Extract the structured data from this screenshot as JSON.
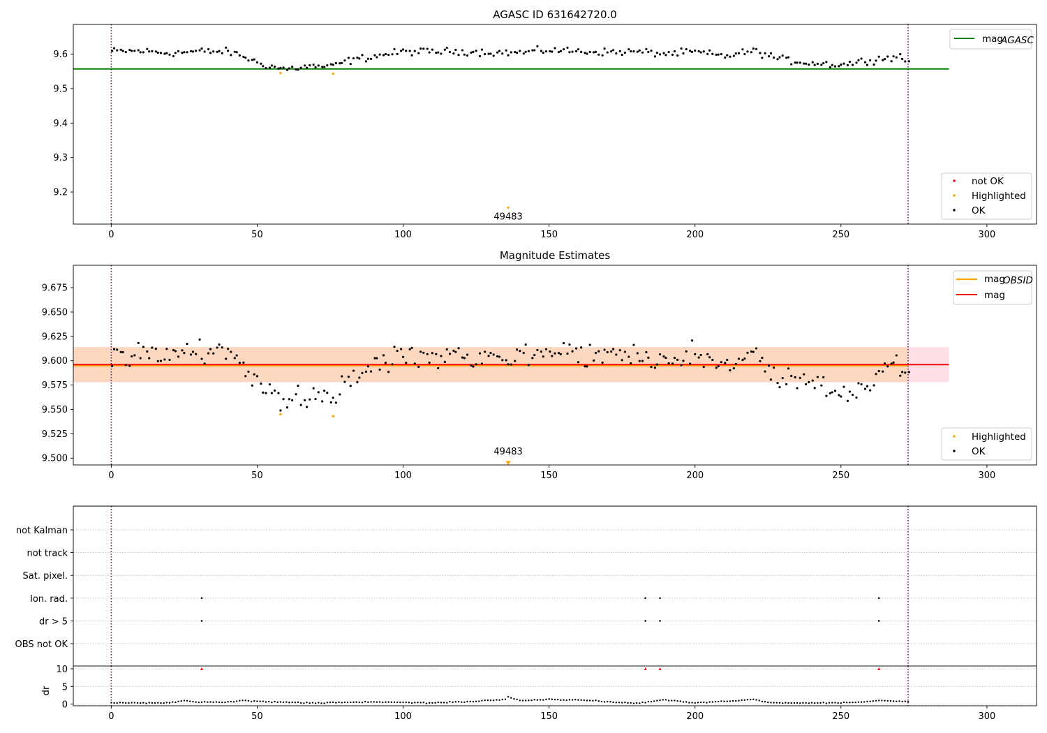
{
  "chart_data": [
    {
      "type": "scatter",
      "title": "AGASC ID 631642720.0",
      "xlim": [
        -13,
        317
      ],
      "ylim": [
        9.107,
        9.686
      ],
      "xticks": [
        "0",
        "50",
        "100",
        "150",
        "200",
        "250",
        "300"
      ],
      "xtick_values": [
        0,
        50,
        100,
        150,
        200,
        250,
        300
      ],
      "yticks": [
        "9.2",
        "9.3",
        "9.4",
        "9.5",
        "9.6"
      ],
      "ytick_values": [
        9.2,
        9.3,
        9.4,
        9.5,
        9.6
      ],
      "grid": false,
      "vlines": [
        0,
        273
      ],
      "reference_line": {
        "label": "mag_AGASC",
        "value": 9.557,
        "x_range": [
          -13,
          287
        ],
        "color": "#008000"
      },
      "legend_top": {
        "placement": "upper right",
        "entries": [
          {
            "label": "mag",
            "subscript": "AGASC",
            "color": "#008000"
          }
        ]
      },
      "legend_bottom": {
        "placement": "lower right",
        "entries": [
          {
            "label": "not OK",
            "color": "#ff0000"
          },
          {
            "label": "Highlighted",
            "color": "#ffa500"
          },
          {
            "label": "OK",
            "color": "#000000"
          }
        ]
      },
      "annotation": {
        "text": "49483",
        "x": 136,
        "y": 9.13
      },
      "highlighted_points": [
        {
          "x": 58,
          "y": 9.545
        },
        {
          "x": 76,
          "y": 9.543
        },
        {
          "x": 136,
          "y": 9.155
        }
      ],
      "ok_trend": [
        [
          0,
          9.608
        ],
        [
          10,
          9.609
        ],
        [
          20,
          9.603
        ],
        [
          30,
          9.608
        ],
        [
          40,
          9.607
        ],
        [
          45,
          9.595
        ],
        [
          50,
          9.575
        ],
        [
          55,
          9.564
        ],
        [
          60,
          9.556
        ],
        [
          65,
          9.562
        ],
        [
          70,
          9.565
        ],
        [
          75,
          9.562
        ],
        [
          80,
          9.578
        ],
        [
          90,
          9.594
        ],
        [
          100,
          9.607
        ],
        [
          110,
          9.607
        ],
        [
          120,
          9.608
        ],
        [
          130,
          9.605
        ],
        [
          140,
          9.604
        ],
        [
          150,
          9.612
        ],
        [
          160,
          9.608
        ],
        [
          170,
          9.606
        ],
        [
          180,
          9.607
        ],
        [
          190,
          9.601
        ],
        [
          200,
          9.606
        ],
        [
          210,
          9.594
        ],
        [
          220,
          9.609
        ],
        [
          230,
          9.584
        ],
        [
          240,
          9.574
        ],
        [
          250,
          9.569
        ],
        [
          260,
          9.583
        ],
        [
          270,
          9.594
        ],
        [
          273,
          9.578
        ]
      ]
    },
    {
      "type": "scatter",
      "title": "Magnitude Estimates",
      "xlim": [
        -13,
        317
      ],
      "ylim": [
        9.493,
        9.698
      ],
      "xticks": [
        "0",
        "50",
        "100",
        "150",
        "200",
        "250",
        "300"
      ],
      "xtick_values": [
        0,
        50,
        100,
        150,
        200,
        250,
        300
      ],
      "yticks": [
        "9.500",
        "9.525",
        "9.550",
        "9.575",
        "9.600",
        "9.625",
        "9.650",
        "9.675"
      ],
      "ytick_values": [
        9.5,
        9.525,
        9.55,
        9.575,
        9.6,
        9.625,
        9.65,
        9.675
      ],
      "grid": false,
      "vlines": [
        0,
        273
      ],
      "mag_line": {
        "label": "mag",
        "value": 9.596,
        "color": "#ff0000",
        "x_range": [
          -13,
          287
        ]
      },
      "mag_obsid_line": {
        "label": "mag_OBSID",
        "value": 9.595,
        "color": "#ffa500",
        "x_range": [
          -13,
          273
        ]
      },
      "band_outer": {
        "low": 9.578,
        "high": 9.614,
        "x_range": [
          -13,
          287
        ],
        "color": "#ffe0e6"
      },
      "band_inner": {
        "low": 9.578,
        "high": 9.614,
        "x_range": [
          -13,
          273
        ],
        "color": "#fdd8c0"
      },
      "legend_top": {
        "placement": "upper right",
        "entries": [
          {
            "label": "mag",
            "subscript": "OBSID",
            "color": "#ffa500"
          },
          {
            "label": "mag",
            "subscript": "",
            "color": "#ff0000"
          }
        ]
      },
      "legend_bottom": {
        "placement": "lower right",
        "entries": [
          {
            "label": "Highlighted",
            "color": "#ffa500"
          },
          {
            "label": "OK",
            "color": "#000000"
          }
        ]
      },
      "annotation": {
        "text": "49483",
        "x": 136,
        "y": 9.501
      },
      "highlighted_points": [
        {
          "x": 58,
          "y": 9.545
        },
        {
          "x": 76,
          "y": 9.543
        },
        {
          "x": 136,
          "y": 9.495
        }
      ],
      "ok_trend": [
        [
          0,
          9.607
        ],
        [
          5,
          9.6
        ],
        [
          10,
          9.613
        ],
        [
          20,
          9.603
        ],
        [
          25,
          9.612
        ],
        [
          30,
          9.608
        ],
        [
          35,
          9.61
        ],
        [
          40,
          9.61
        ],
        [
          45,
          9.595
        ],
        [
          50,
          9.57
        ],
        [
          55,
          9.567
        ],
        [
          60,
          9.56
        ],
        [
          65,
          9.56
        ],
        [
          70,
          9.568
        ],
        [
          75,
          9.56
        ],
        [
          80,
          9.575
        ],
        [
          90,
          9.594
        ],
        [
          100,
          9.607
        ],
        [
          110,
          9.607
        ],
        [
          120,
          9.608
        ],
        [
          130,
          9.605
        ],
        [
          140,
          9.604
        ],
        [
          150,
          9.612
        ],
        [
          160,
          9.608
        ],
        [
          170,
          9.606
        ],
        [
          180,
          9.607
        ],
        [
          190,
          9.601
        ],
        [
          200,
          9.606
        ],
        [
          210,
          9.594
        ],
        [
          220,
          9.612
        ],
        [
          228,
          9.575
        ],
        [
          235,
          9.58
        ],
        [
          240,
          9.572
        ],
        [
          250,
          9.567
        ],
        [
          258,
          9.573
        ],
        [
          265,
          9.597
        ],
        [
          270,
          9.598
        ],
        [
          273,
          9.58
        ]
      ]
    },
    {
      "type": "scatter",
      "title": "",
      "xlim": [
        -13,
        317
      ],
      "xticks": [
        "0",
        "50",
        "100",
        "150",
        "200",
        "250",
        "300"
      ],
      "xtick_values": [
        0,
        50,
        100,
        150,
        200,
        250,
        300
      ],
      "vlines": [
        0,
        273
      ],
      "flag_rows": [
        "not Kalman",
        "not track",
        "Sat. pixel.",
        "Ion. rad.",
        "dr > 5",
        "OBS not OK"
      ],
      "flag_points": [
        {
          "row": "Ion. rad.",
          "x": [
            31,
            183,
            188,
            263
          ]
        },
        {
          "row": "dr > 5",
          "x": [
            31,
            183,
            188,
            263
          ]
        }
      ],
      "dr_panel": {
        "ylabel": "dr",
        "yticks": [
          "0",
          "5",
          "10"
        ],
        "ytick_values": [
          0,
          5,
          10
        ],
        "ylim": [
          -0.5,
          10.8
        ],
        "clipped_points": {
          "value": 10,
          "x": [
            31,
            183,
            188,
            263
          ],
          "color": "#ff0000"
        },
        "trend": [
          [
            0,
            0.3
          ],
          [
            20,
            0.3
          ],
          [
            25,
            1.0
          ],
          [
            30,
            0.5
          ],
          [
            40,
            0.6
          ],
          [
            45,
            1.0
          ],
          [
            55,
            0.6
          ],
          [
            70,
            0.3
          ],
          [
            90,
            0.6
          ],
          [
            110,
            0.3
          ],
          [
            125,
            0.8
          ],
          [
            135,
            1.3
          ],
          [
            136,
            2.0
          ],
          [
            140,
            1.0
          ],
          [
            150,
            1.3
          ],
          [
            160,
            1.1
          ],
          [
            170,
            0.7
          ],
          [
            180,
            0.2
          ],
          [
            190,
            1.2
          ],
          [
            200,
            0.3
          ],
          [
            215,
            1.0
          ],
          [
            220,
            1.3
          ],
          [
            225,
            0.4
          ],
          [
            240,
            0.3
          ],
          [
            255,
            0.4
          ],
          [
            263,
            1.0
          ],
          [
            273,
            0.6
          ]
        ]
      }
    }
  ]
}
